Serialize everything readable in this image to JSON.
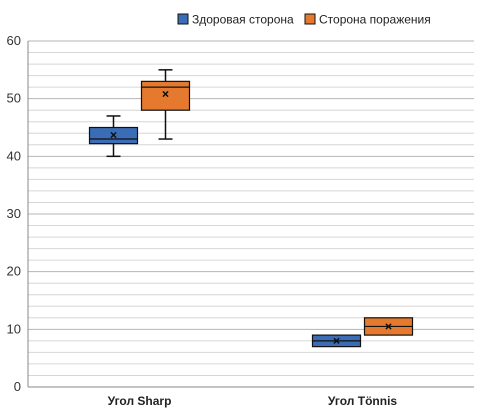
{
  "chart_data": {
    "type": "box",
    "categories": [
      "Угол Sharp",
      "Угол Tönnis"
    ],
    "ylim": [
      0,
      60
    ],
    "yticks": [
      0,
      10,
      20,
      30,
      40,
      50,
      60
    ],
    "minor_step": 2,
    "grid": true,
    "legend_position": "top-right",
    "series": [
      {
        "name": "Здоровая сторона",
        "color": "#3A6DB5",
        "boxes": [
          {
            "min": 40,
            "q1": 42.2,
            "median": 43,
            "q3": 45,
            "max": 47,
            "mean": 43.7
          },
          {
            "min": 7,
            "q1": 7,
            "median": 8,
            "q3": 9,
            "max": 9,
            "mean": 8
          }
        ]
      },
      {
        "name": "Сторона поражения",
        "color": "#E57A2E",
        "boxes": [
          {
            "min": 43,
            "q1": 48,
            "median": 52,
            "q3": 53,
            "max": 55,
            "mean": 50.8
          },
          {
            "min": 9,
            "q1": 9,
            "median": 10.5,
            "q3": 12,
            "max": 12,
            "mean": 10.5
          }
        ]
      }
    ]
  }
}
